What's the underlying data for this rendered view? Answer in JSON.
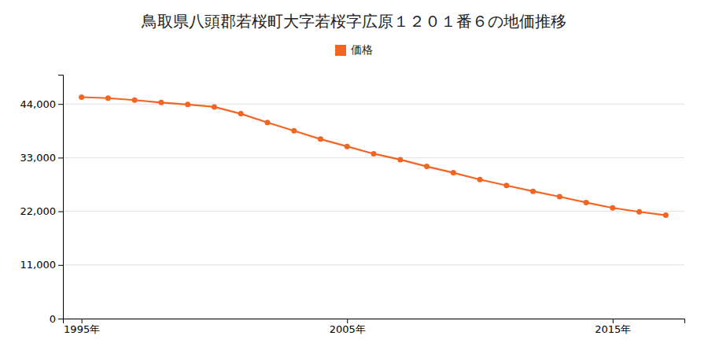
{
  "chart_data": {
    "type": "line",
    "title": "鳥取県八頭郡若桜町大字若桜字広原１２０１番６の地価推移",
    "x": [
      1995,
      1996,
      1997,
      1998,
      1999,
      2000,
      2001,
      2002,
      2003,
      2004,
      2005,
      2006,
      2007,
      2008,
      2009,
      2010,
      2011,
      2012,
      2013,
      2014,
      2015,
      2016,
      2017
    ],
    "series": [
      {
        "name": "価格",
        "color": "#f26522",
        "marker": "circle",
        "values": [
          45400,
          45200,
          44800,
          44300,
          43900,
          43400,
          42000,
          40200,
          38500,
          36800,
          35300,
          33800,
          32600,
          31200,
          29900,
          28500,
          27300,
          26100,
          25000,
          23800,
          22700,
          21900,
          21200
        ]
      }
    ],
    "xlim": [
      1994.3,
      2017.7
    ],
    "xticks": [
      {
        "value": 1995,
        "label": "1995年"
      },
      {
        "value": 2005,
        "label": "2005年"
      },
      {
        "value": 2015,
        "label": "2015年"
      }
    ],
    "ylim": [
      0,
      50000
    ],
    "yticks": [
      0,
      {
        "value": 11000,
        "label": "11,000"
      },
      {
        "value": 22000,
        "label": "22,000"
      },
      {
        "value": 33000,
        "label": "33,000"
      },
      {
        "value": 44000,
        "label": "44,000"
      }
    ],
    "grid": true,
    "legend": "top"
  }
}
